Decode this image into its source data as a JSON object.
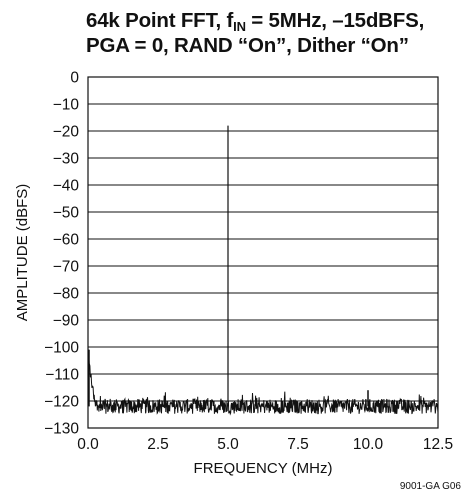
{
  "chart_data": {
    "type": "line",
    "title_line1_pre": "64k Point FFT, f",
    "title_sub": "IN",
    "title_line1_post": " = 5MHz, –15dBFS,",
    "title_line2": "PGA = 0, RAND “On”, Dither “On”",
    "xlabel": "FREQUENCY (MHz)",
    "ylabel": "AMPLITUDE (dBFS)",
    "xlim": [
      0,
      12.5
    ],
    "ylim": [
      -130,
      0
    ],
    "x_ticks": [
      "0.0",
      "2.5",
      "5.0",
      "7.5",
      "10.0",
      "12.5"
    ],
    "y_ticks": [
      "0",
      "−10",
      "−20",
      "−30",
      "−40",
      "−50",
      "−60",
      "−70",
      "−80",
      "−90",
      "−100",
      "−110",
      "−120",
      "−130"
    ],
    "grid": "horizontal",
    "noise_floor": -122,
    "series": [
      {
        "peaks": [
          {
            "x": 0.0,
            "y": -101
          },
          {
            "x": 5.0,
            "y": -18
          },
          {
            "x": 10.0,
            "y": -116
          }
        ]
      }
    ]
  },
  "footnote": "9001-GA G06"
}
